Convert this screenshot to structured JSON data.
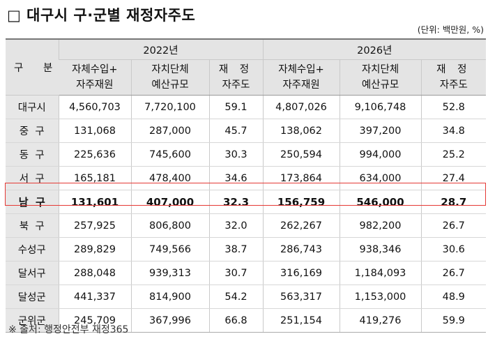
{
  "title": "□ 대구시 구·군별 재정자주도",
  "unit": "(단위: 백만원, %)",
  "table": {
    "corner": "구 분",
    "years": [
      "2022년",
      "2026년"
    ],
    "subheaders": [
      {
        "line1": "자체수입+",
        "line2": "자주재원"
      },
      {
        "line1": "자치단체",
        "line2": "예산규모"
      },
      {
        "line1": "재 정",
        "line2": "자주도"
      },
      {
        "line1": "자체수입+",
        "line2": "자주재원"
      },
      {
        "line1": "자치단체",
        "line2": "예산규모"
      },
      {
        "line1": "재 정",
        "line2": "자주도"
      }
    ],
    "rows": [
      {
        "region": "대구시",
        "v": [
          "4,560,703",
          "7,720,100",
          "59.1",
          "4,807,026",
          "9,106,748",
          "52.8"
        ]
      },
      {
        "region": "중  구",
        "v": [
          "131,068",
          "287,000",
          "45.7",
          "138,062",
          "397,200",
          "34.8"
        ]
      },
      {
        "region": "동  구",
        "v": [
          "225,636",
          "745,600",
          "30.3",
          "250,594",
          "994,000",
          "25.2"
        ]
      },
      {
        "region": "서  구",
        "v": [
          "165,181",
          "478,400",
          "34.6",
          "173,864",
          "634,000",
          "27.4"
        ]
      },
      {
        "region": "남  구",
        "v": [
          "131,601",
          "407,000",
          "32.3",
          "156,759",
          "546,000",
          "28.7"
        ]
      },
      {
        "region": "북  구",
        "v": [
          "257,925",
          "806,800",
          "32.0",
          "262,267",
          "982,200",
          "26.7"
        ]
      },
      {
        "region": "수성구",
        "v": [
          "289,829",
          "749,566",
          "38.7",
          "286,743",
          "938,346",
          "30.6"
        ]
      },
      {
        "region": "달서구",
        "v": [
          "288,048",
          "939,313",
          "30.7",
          "316,169",
          "1,184,093",
          "26.7"
        ]
      },
      {
        "region": "달성군",
        "v": [
          "441,337",
          "814,900",
          "54.2",
          "563,317",
          "1,153,000",
          "48.9"
        ]
      },
      {
        "region": "군위군",
        "v": [
          "245,709",
          "367,996",
          "66.8",
          "251,154",
          "419,276",
          "59.9"
        ]
      }
    ]
  },
  "source": "※ 출처: 행정안전부 재정365",
  "colors": {
    "header_bg": "#e4e4e4",
    "highlight_border": "#e53935"
  }
}
